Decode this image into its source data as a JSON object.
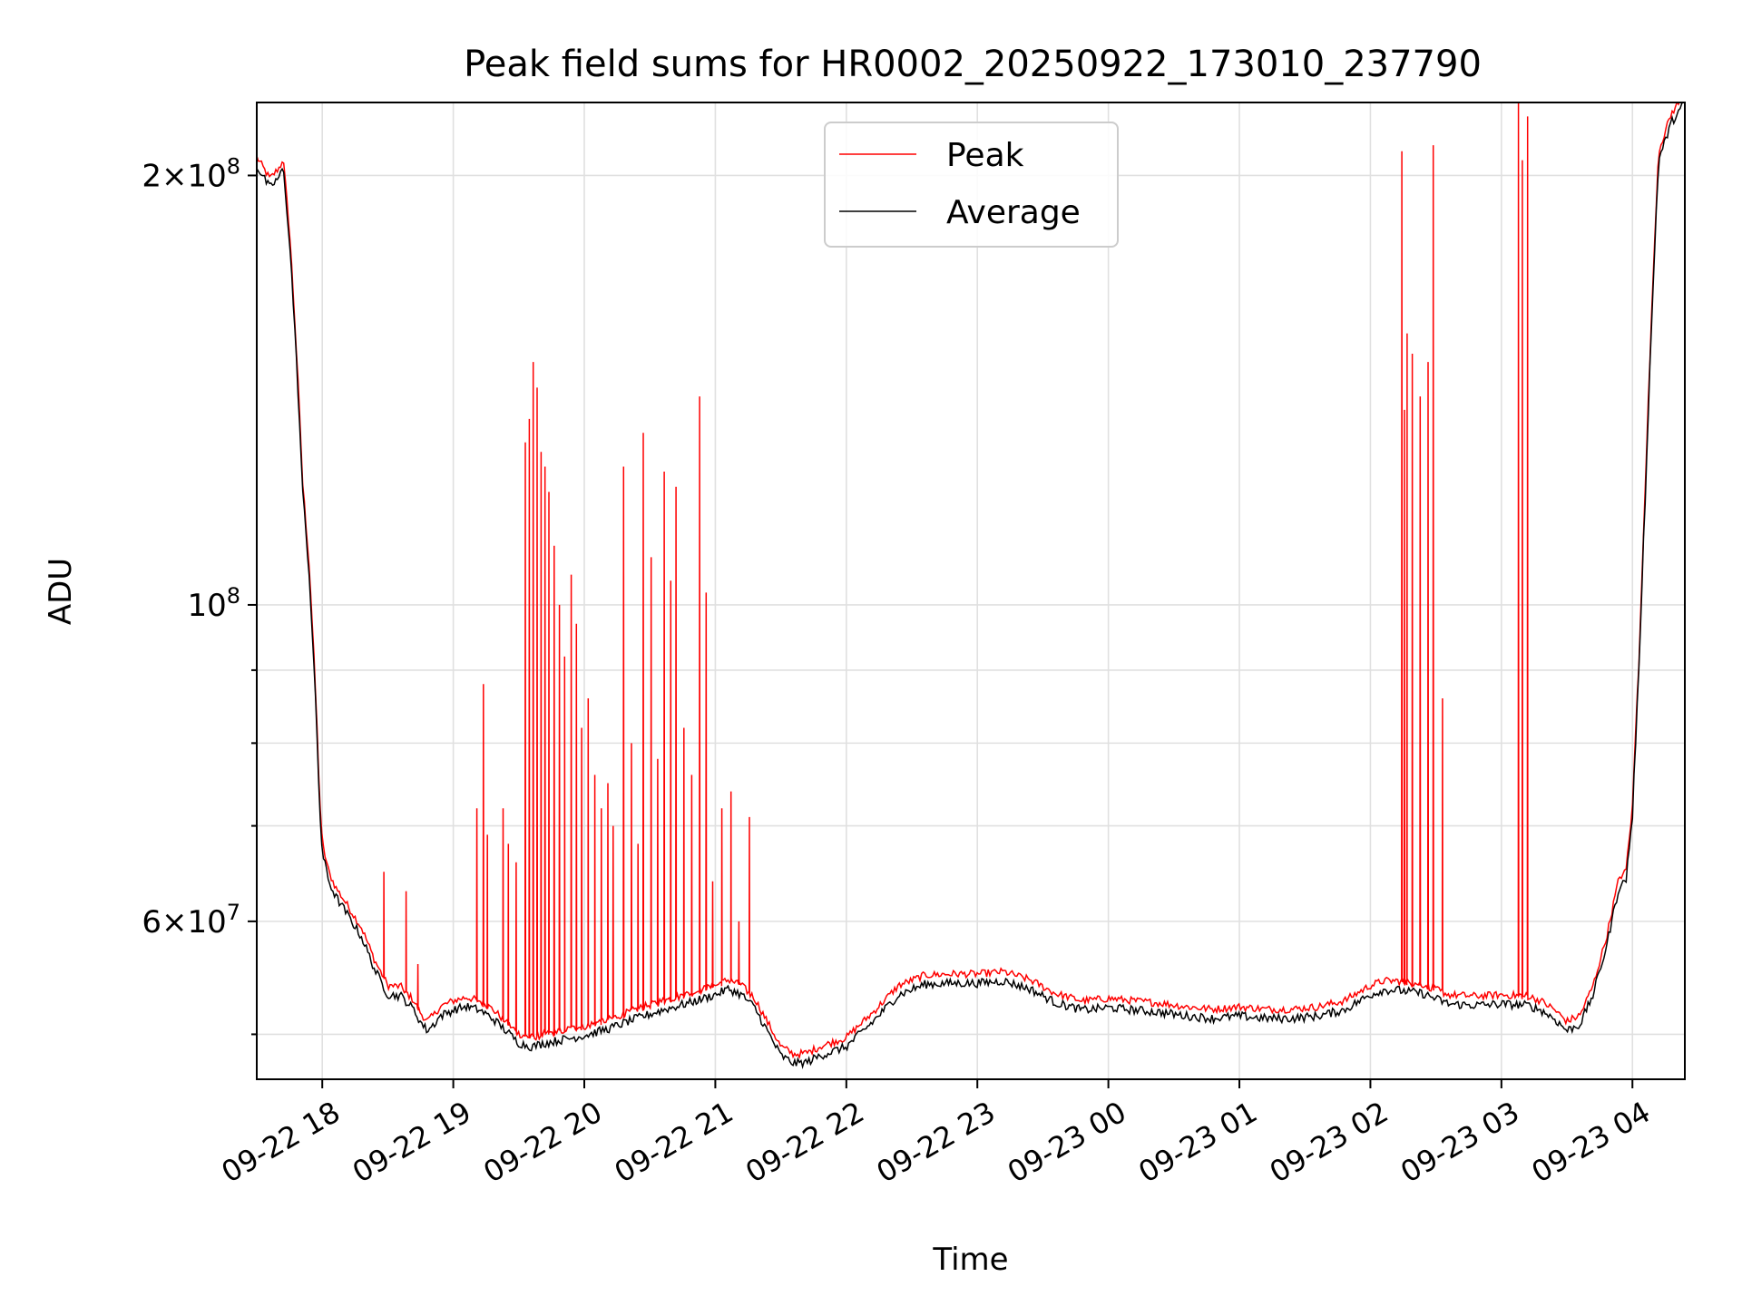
{
  "chart_data": {
    "type": "line",
    "title": "Peak field sums for HR0002_20250922_173010_237790",
    "xlabel": "Time",
    "ylabel": "ADU",
    "yscale": "log",
    "xlim_hours": [
      -0.5,
      10.4
    ],
    "ylim": [
      46500000,
      225000000
    ],
    "x_unit": "hours since 2025-09-22 18:00",
    "x_ticks": [
      {
        "hour": 0,
        "label": "09-22 18"
      },
      {
        "hour": 1,
        "label": "09-22 19"
      },
      {
        "hour": 2,
        "label": "09-22 20"
      },
      {
        "hour": 3,
        "label": "09-22 21"
      },
      {
        "hour": 4,
        "label": "09-22 22"
      },
      {
        "hour": 5,
        "label": "09-22 23"
      },
      {
        "hour": 6,
        "label": "09-23 00"
      },
      {
        "hour": 7,
        "label": "09-23 01"
      },
      {
        "hour": 8,
        "label": "09-23 02"
      },
      {
        "hour": 9,
        "label": "09-23 03"
      },
      {
        "hour": 10,
        "label": "09-23 04"
      }
    ],
    "y_major_ticks": [
      {
        "value": 60000000,
        "mantissa": "6",
        "exponent": "7"
      },
      {
        "value": 100000000,
        "mantissa": "",
        "exponent": "8"
      },
      {
        "value": 200000000,
        "mantissa": "2",
        "exponent": "8"
      }
    ],
    "y_minor_ticks": [
      50000000,
      70000000,
      80000000,
      90000000
    ],
    "grid": true,
    "legend": {
      "placement": "top-center",
      "entries": [
        {
          "name": "Peak",
          "color": "#ff0000"
        },
        {
          "name": "Average",
          "color": "#000000"
        }
      ]
    },
    "series": [
      {
        "name": "Average",
        "color": "#000000",
        "x": [
          -0.5,
          -0.4,
          -0.32,
          -0.3,
          -0.25,
          -0.2,
          -0.15,
          -0.1,
          -0.05,
          -0.02,
          0.0,
          0.05,
          0.1,
          0.2,
          0.3,
          0.4,
          0.5,
          0.6,
          0.7,
          0.75,
          0.8,
          0.85,
          0.9,
          1.0,
          1.1,
          1.2,
          1.3,
          1.4,
          1.5,
          1.6,
          1.7,
          1.8,
          1.9,
          2.0,
          2.2,
          2.4,
          2.6,
          2.8,
          3.0,
          3.1,
          3.2,
          3.3,
          3.4,
          3.5,
          3.6,
          3.7,
          3.8,
          4.0,
          4.2,
          4.4,
          4.6,
          4.8,
          5.0,
          5.2,
          5.4,
          5.6,
          5.8,
          6.0,
          6.2,
          6.4,
          6.6,
          6.8,
          7.0,
          7.2,
          7.4,
          7.6,
          7.8,
          8.0,
          8.1,
          8.2,
          8.4,
          8.6,
          8.8,
          9.0,
          9.2,
          9.3,
          9.4,
          9.5,
          9.6,
          9.7,
          9.8,
          9.9,
          9.95,
          10.0,
          10.05,
          10.1,
          10.15,
          10.2,
          10.3,
          10.4
        ],
        "y": [
          203000000,
          196000000,
          200000000,
          203000000,
          180000000,
          150000000,
          120000000,
          105000000,
          85000000,
          72000000,
          67000000,
          64000000,
          62500000,
          60500000,
          58500000,
          55500000,
          53300000,
          53200000,
          52000000,
          51000000,
          50300000,
          50800000,
          51500000,
          52000000,
          52300000,
          52000000,
          51300000,
          50300000,
          49300000,
          49000000,
          49300000,
          49500000,
          49700000,
          49900000,
          50500000,
          51300000,
          52000000,
          52600000,
          53300000,
          53800000,
          53300000,
          52200000,
          50200000,
          48300000,
          47700000,
          47800000,
          48300000,
          49000000,
          51000000,
          53300000,
          54200000,
          54300000,
          54300000,
          54500000,
          53800000,
          52600000,
          52000000,
          52200000,
          52000000,
          51800000,
          51500000,
          51300000,
          51500000,
          51300000,
          51300000,
          51500000,
          52000000,
          53300000,
          53700000,
          53700000,
          53400000,
          52500000,
          52400000,
          52500000,
          52400000,
          52000000,
          51300000,
          50300000,
          50800000,
          53300000,
          57500000,
          63500000,
          64000000,
          71000000,
          90000000,
          120000000,
          160000000,
          205000000,
          218000000,
          225000000
        ]
      },
      {
        "name": "Peak",
        "color": "#ff0000",
        "baseline_offset": 1.015,
        "spikes": [
          {
            "x": 0.47,
            "y": 65000000
          },
          {
            "x": 0.64,
            "y": 63000000
          },
          {
            "x": 0.73,
            "y": 56000000
          },
          {
            "x": 1.18,
            "y": 72000000
          },
          {
            "x": 1.23,
            "y": 88000000
          },
          {
            "x": 1.26,
            "y": 69000000
          },
          {
            "x": 1.38,
            "y": 72000000
          },
          {
            "x": 1.42,
            "y": 68000000
          },
          {
            "x": 1.48,
            "y": 66000000
          },
          {
            "x": 1.55,
            "y": 130000000
          },
          {
            "x": 1.58,
            "y": 135000000
          },
          {
            "x": 1.61,
            "y": 148000000
          },
          {
            "x": 1.64,
            "y": 142000000
          },
          {
            "x": 1.67,
            "y": 128000000
          },
          {
            "x": 1.7,
            "y": 125000000
          },
          {
            "x": 1.73,
            "y": 120000000
          },
          {
            "x": 1.77,
            "y": 110000000
          },
          {
            "x": 1.81,
            "y": 100000000
          },
          {
            "x": 1.85,
            "y": 92000000
          },
          {
            "x": 1.9,
            "y": 105000000
          },
          {
            "x": 1.94,
            "y": 97000000
          },
          {
            "x": 1.98,
            "y": 82000000
          },
          {
            "x": 2.03,
            "y": 86000000
          },
          {
            "x": 2.08,
            "y": 76000000
          },
          {
            "x": 2.13,
            "y": 72000000
          },
          {
            "x": 2.18,
            "y": 75000000
          },
          {
            "x": 2.22,
            "y": 70000000
          },
          {
            "x": 2.3,
            "y": 125000000
          },
          {
            "x": 2.36,
            "y": 80000000
          },
          {
            "x": 2.41,
            "y": 68000000
          },
          {
            "x": 2.45,
            "y": 132000000
          },
          {
            "x": 2.51,
            "y": 108000000
          },
          {
            "x": 2.56,
            "y": 78000000
          },
          {
            "x": 2.61,
            "y": 124000000
          },
          {
            "x": 2.66,
            "y": 104000000
          },
          {
            "x": 2.7,
            "y": 121000000
          },
          {
            "x": 2.76,
            "y": 82000000
          },
          {
            "x": 2.82,
            "y": 76000000
          },
          {
            "x": 2.88,
            "y": 140000000
          },
          {
            "x": 2.93,
            "y": 102000000
          },
          {
            "x": 2.98,
            "y": 64000000
          },
          {
            "x": 3.05,
            "y": 72000000
          },
          {
            "x": 3.12,
            "y": 74000000
          },
          {
            "x": 3.18,
            "y": 60000000
          },
          {
            "x": 3.26,
            "y": 71000000
          },
          {
            "x": 8.24,
            "y": 208000000
          },
          {
            "x": 8.26,
            "y": 137000000
          },
          {
            "x": 8.28,
            "y": 155000000
          },
          {
            "x": 8.32,
            "y": 150000000
          },
          {
            "x": 8.38,
            "y": 140000000
          },
          {
            "x": 8.44,
            "y": 148000000
          },
          {
            "x": 8.48,
            "y": 210000000
          },
          {
            "x": 8.55,
            "y": 86000000
          },
          {
            "x": 9.13,
            "y": 225000000
          },
          {
            "x": 9.16,
            "y": 205000000
          },
          {
            "x": 9.2,
            "y": 220000000
          }
        ]
      }
    ]
  }
}
